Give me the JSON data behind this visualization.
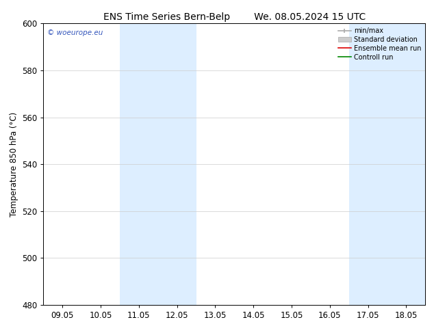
{
  "title_left": "ENS Time Series Bern-Belp",
  "title_right": "We. 08.05.2024 15 UTC",
  "ylabel": "Temperature 850 hPa (°C)",
  "ylim": [
    480,
    600
  ],
  "yticks": [
    480,
    500,
    520,
    540,
    560,
    580,
    600
  ],
  "xtick_labels": [
    "09.05",
    "10.05",
    "11.05",
    "12.05",
    "13.05",
    "14.05",
    "15.05",
    "16.05",
    "17.05",
    "18.05"
  ],
  "shaded_regions": [
    {
      "xstart": 2,
      "xend": 4
    },
    {
      "xstart": 8,
      "xend": 10
    }
  ],
  "shade_color": "#ddeeff",
  "watermark_text": "© woeurope.eu",
  "watermark_color": "#3355bb",
  "legend_entries": [
    {
      "label": "min/max",
      "color": "#aaaaaa"
    },
    {
      "label": "Standard deviation",
      "color": "#cccccc"
    },
    {
      "label": "Ensemble mean run",
      "color": "#dd0000"
    },
    {
      "label": "Controll run",
      "color": "#008800"
    }
  ],
  "bg_color": "#ffffff",
  "title_font_size": 10,
  "axis_font_size": 8.5,
  "label_font_size": 8.5
}
